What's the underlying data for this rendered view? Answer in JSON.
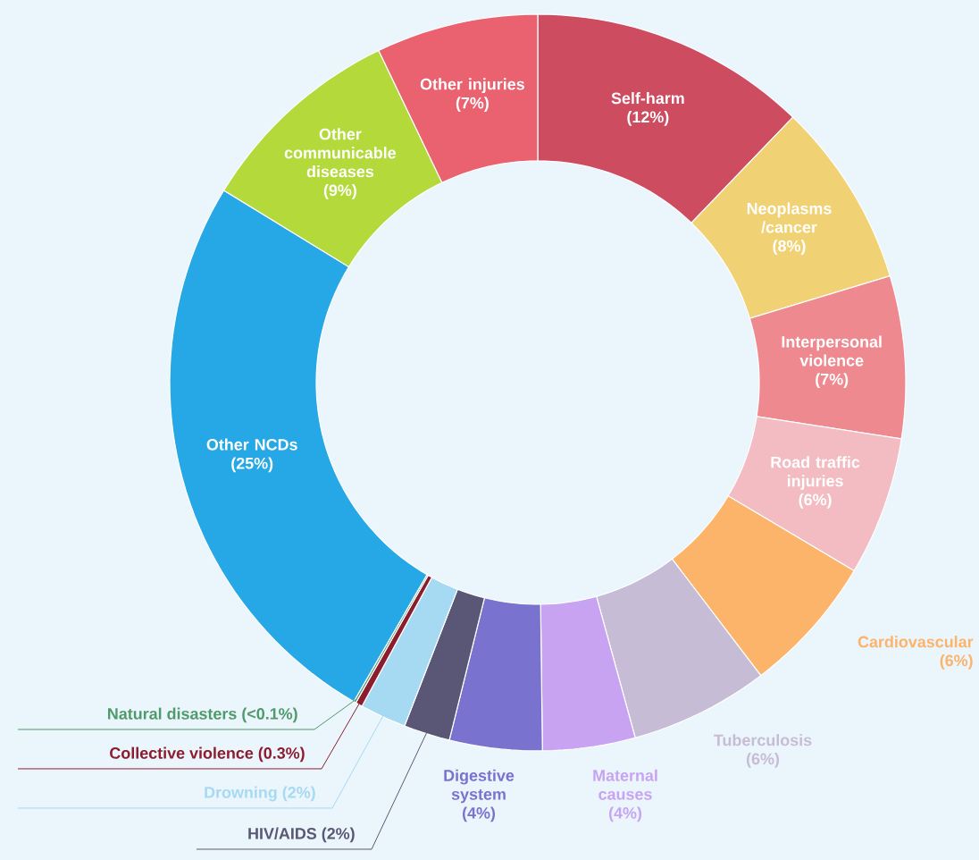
{
  "chart_data": {
    "type": "donut",
    "categories": [
      "Self-harm",
      "Neoplasms /cancer",
      "Interpersonal violence",
      "Road traffic injuries",
      "Cardiovascular",
      "Tuberculosis",
      "Maternal causes",
      "Digestive system",
      "HIV/AIDS",
      "Drowning",
      "Collective violence",
      "Natural disasters",
      "Other NCDs",
      "Other communicable diseases",
      "Other injuries"
    ],
    "values": [
      12,
      8,
      7,
      6,
      6,
      6,
      4,
      4,
      2,
      2,
      0.3,
      0.1,
      25,
      9,
      7
    ],
    "value_labels": [
      "(12%)",
      "(8%)",
      "(7%)",
      "(6%)",
      "(6%)",
      "(6%)",
      "(4%)",
      "(4%)",
      "(2%)",
      "(2%)",
      "(0.3%)",
      "(<0.1%)",
      "(25%)",
      "(9%)",
      "(7%)"
    ],
    "colors": [
      "#cd4c60",
      "#f0d173",
      "#ee8a8f",
      "#f3bcc3",
      "#fcb36a",
      "#c7bcd6",
      "#c7a3f2",
      "#7a72cf",
      "#5a5675",
      "#a6d9f2",
      "#8c1d2e",
      "#4f9a6a",
      "#26a8e6",
      "#b3d93b",
      "#ea616f"
    ]
  }
}
